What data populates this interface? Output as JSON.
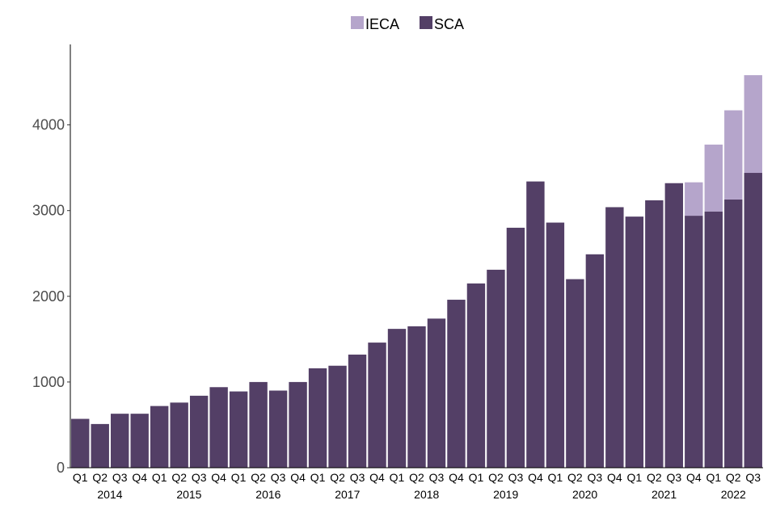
{
  "chart_data": {
    "type": "bar",
    "stacked": true,
    "title": "",
    "xlabel": "",
    "ylabel": "",
    "ylim": [
      0,
      4950
    ],
    "yticks": [
      0,
      1000,
      2000,
      3000,
      4000
    ],
    "ytick_labels": [
      "0",
      "1000",
      "2000",
      "3000",
      "4000"
    ],
    "legend_position": "top",
    "colors": {
      "SCA": "#533f66",
      "IECA": "#b5a5cb"
    },
    "categories": [
      {
        "quarter": "Q1",
        "year": "2014"
      },
      {
        "quarter": "Q2",
        "year": "2014"
      },
      {
        "quarter": "Q3",
        "year": "2014"
      },
      {
        "quarter": "Q4",
        "year": "2014"
      },
      {
        "quarter": "Q1",
        "year": "2015"
      },
      {
        "quarter": "Q2",
        "year": "2015"
      },
      {
        "quarter": "Q3",
        "year": "2015"
      },
      {
        "quarter": "Q4",
        "year": "2015"
      },
      {
        "quarter": "Q1",
        "year": "2016"
      },
      {
        "quarter": "Q2",
        "year": "2016"
      },
      {
        "quarter": "Q3",
        "year": "2016"
      },
      {
        "quarter": "Q4",
        "year": "2016"
      },
      {
        "quarter": "Q1",
        "year": "2017"
      },
      {
        "quarter": "Q2",
        "year": "2017"
      },
      {
        "quarter": "Q3",
        "year": "2017"
      },
      {
        "quarter": "Q4",
        "year": "2017"
      },
      {
        "quarter": "Q1",
        "year": "2018"
      },
      {
        "quarter": "Q2",
        "year": "2018"
      },
      {
        "quarter": "Q3",
        "year": "2018"
      },
      {
        "quarter": "Q4",
        "year": "2018"
      },
      {
        "quarter": "Q1",
        "year": "2019"
      },
      {
        "quarter": "Q2",
        "year": "2019"
      },
      {
        "quarter": "Q3",
        "year": "2019"
      },
      {
        "quarter": "Q4",
        "year": "2019"
      },
      {
        "quarter": "Q1",
        "year": "2020"
      },
      {
        "quarter": "Q2",
        "year": "2020"
      },
      {
        "quarter": "Q3",
        "year": "2020"
      },
      {
        "quarter": "Q4",
        "year": "2020"
      },
      {
        "quarter": "Q1",
        "year": "2021"
      },
      {
        "quarter": "Q2",
        "year": "2021"
      },
      {
        "quarter": "Q3",
        "year": "2021"
      },
      {
        "quarter": "Q4",
        "year": "2021"
      },
      {
        "quarter": "Q1",
        "year": "2022"
      },
      {
        "quarter": "Q2",
        "year": "2022"
      },
      {
        "quarter": "Q3",
        "year": "2022"
      }
    ],
    "series": [
      {
        "name": "SCA",
        "values": [
          570,
          510,
          630,
          630,
          720,
          760,
          840,
          940,
          890,
          1000,
          900,
          1000,
          1160,
          1190,
          1320,
          1460,
          1620,
          1650,
          1740,
          1960,
          2150,
          2310,
          2800,
          3340,
          2860,
          2200,
          2490,
          3040,
          2930,
          3120,
          3320,
          2940,
          2990,
          3130,
          3440
        ]
      },
      {
        "name": "IECA",
        "values": [
          0,
          0,
          0,
          0,
          0,
          0,
          0,
          0,
          0,
          0,
          0,
          0,
          0,
          0,
          0,
          0,
          0,
          0,
          0,
          0,
          0,
          0,
          0,
          0,
          0,
          0,
          0,
          0,
          0,
          0,
          0,
          390,
          780,
          1040,
          1140
        ]
      }
    ],
    "legend": [
      {
        "name": "IECA",
        "label": "IECA"
      },
      {
        "name": "SCA",
        "label": "SCA"
      }
    ],
    "year_labels": [
      "2014",
      "2015",
      "2016",
      "2017",
      "2018",
      "2019",
      "2020",
      "2021",
      "2022"
    ]
  }
}
